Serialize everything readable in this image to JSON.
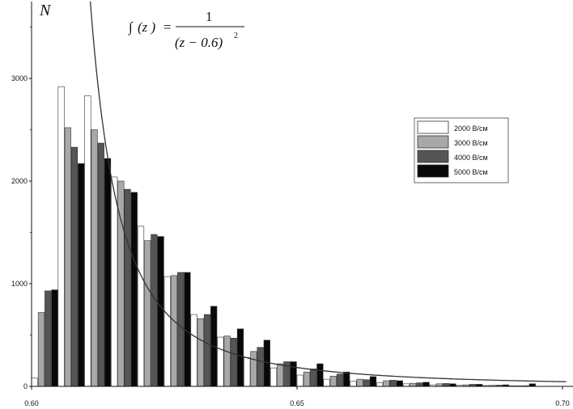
{
  "chart_data": {
    "type": "bar",
    "ylabel": "N",
    "xlim": [
      0.6,
      0.7
    ],
    "ylim": [
      0,
      3750
    ],
    "x_ticks": [
      0.6,
      0.65,
      0.7
    ],
    "x_tick_labels": [
      "0.60",
      "0.65",
      "0.70"
    ],
    "y_ticks": [
      0,
      1000,
      2000,
      3000
    ],
    "y_tick_labels": [
      "0",
      "1000",
      "2000",
      "3000"
    ],
    "grid": false,
    "legend_position": "right",
    "bin_width": 0.005,
    "bin_starts": [
      0.6,
      0.605,
      0.61,
      0.615,
      0.62,
      0.625,
      0.63,
      0.635,
      0.64,
      0.645,
      0.65,
      0.655,
      0.66,
      0.665,
      0.67,
      0.675,
      0.68,
      0.685,
      0.69,
      0.695
    ],
    "series": [
      {
        "name": "2000 В/см",
        "color": "#ffffff",
        "values": [
          80,
          2920,
          2830,
          2040,
          1560,
          1070,
          700,
          480,
          280,
          180,
          110,
          70,
          50,
          35,
          25,
          15,
          10,
          8,
          5,
          0
        ]
      },
      {
        "name": "3000 В/см",
        "color": "#a8a8a8",
        "values": [
          720,
          2520,
          2500,
          2000,
          1420,
          1080,
          660,
          490,
          340,
          220,
          140,
          100,
          70,
          55,
          30,
          25,
          15,
          10,
          5,
          0
        ]
      },
      {
        "name": "4000 В/см",
        "color": "#555555",
        "values": [
          930,
          2330,
          2370,
          1920,
          1480,
          1110,
          700,
          470,
          380,
          240,
          170,
          120,
          65,
          60,
          35,
          28,
          20,
          12,
          6,
          0
        ]
      },
      {
        "name": "5000 В/см",
        "color": "#080808",
        "values": [
          940,
          2170,
          2220,
          1890,
          1460,
          1110,
          780,
          560,
          450,
          240,
          220,
          140,
          95,
          55,
          40,
          25,
          20,
          15,
          25,
          0
        ]
      }
    ],
    "fit_curve": {
      "x0": 0.6
    }
  }
}
